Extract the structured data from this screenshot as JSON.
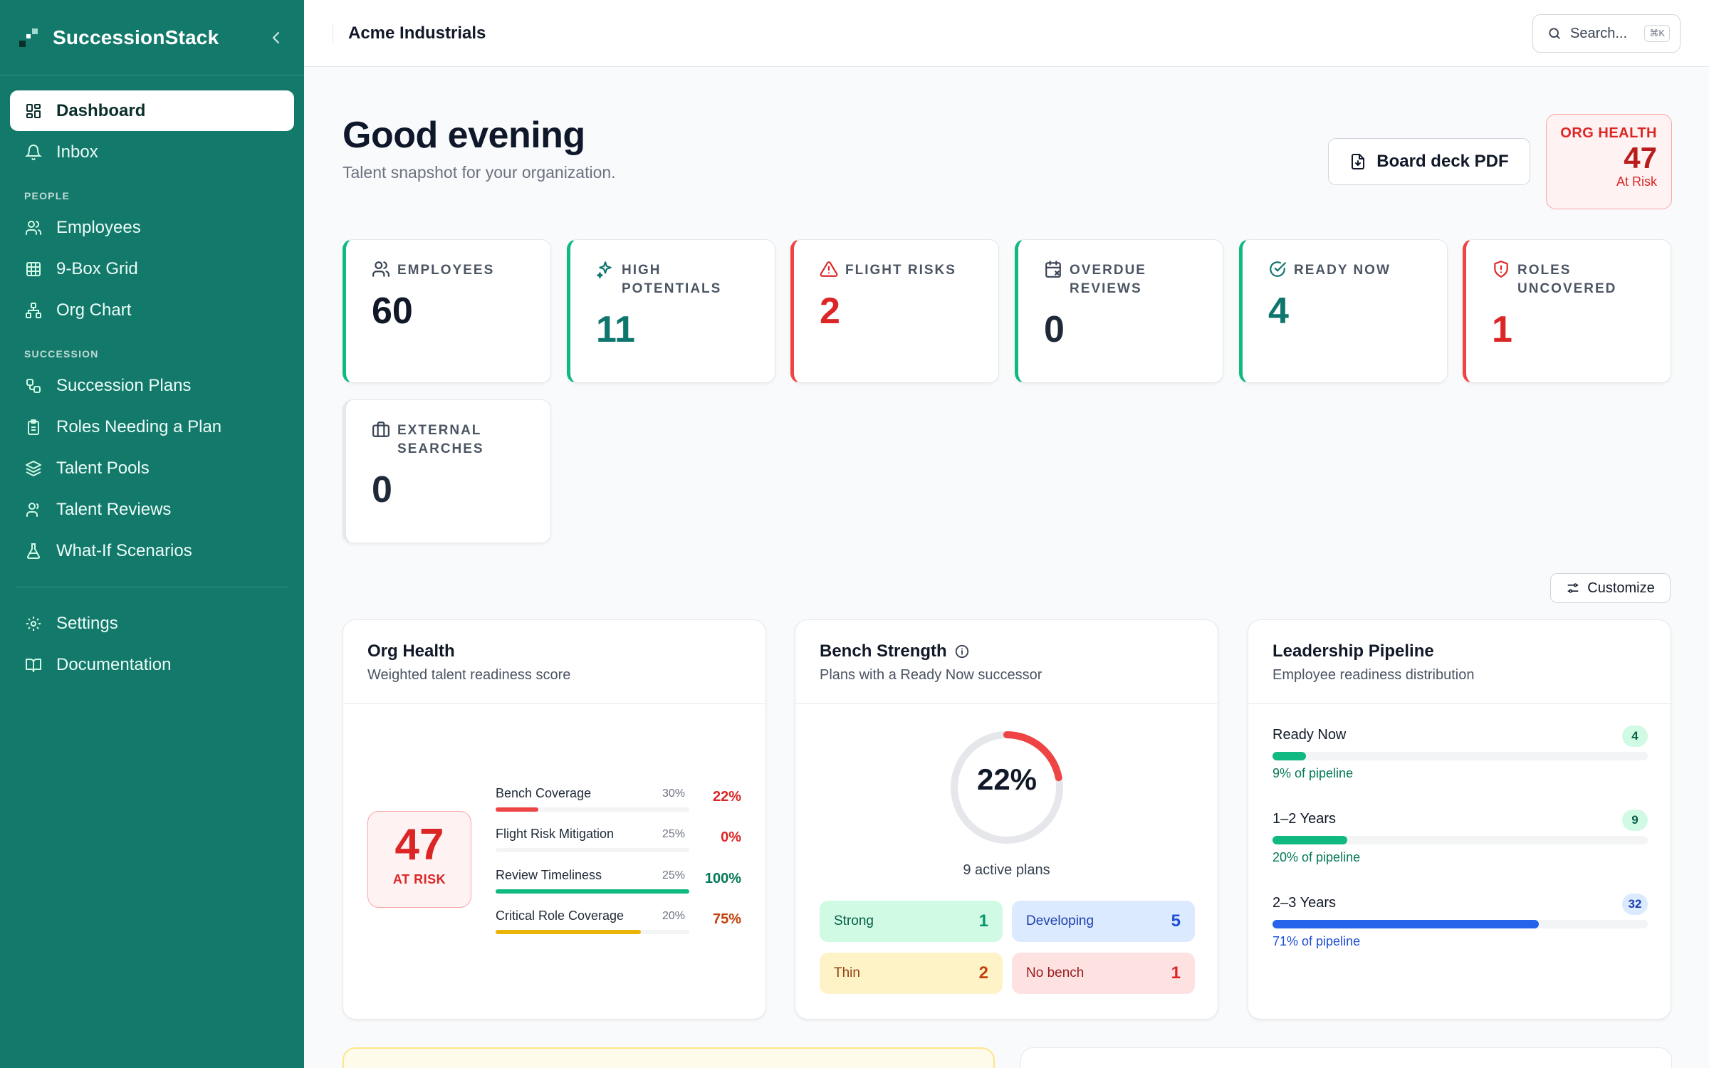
{
  "app": {
    "name": "SuccessionStack"
  },
  "sidebar": {
    "top_items": [
      {
        "label": "Dashboard",
        "icon": "dashboard-icon"
      },
      {
        "label": "Inbox",
        "icon": "bell-icon"
      }
    ],
    "sections": [
      {
        "title": "PEOPLE",
        "items": [
          {
            "label": "Employees",
            "icon": "users-icon"
          },
          {
            "label": "9-Box Grid",
            "icon": "grid-icon"
          },
          {
            "label": "Org Chart",
            "icon": "org-chart-icon"
          }
        ]
      },
      {
        "title": "SUCCESSION",
        "items": [
          {
            "label": "Succession Plans",
            "icon": "workflow-icon"
          },
          {
            "label": "Roles Needing a Plan",
            "icon": "clipboard-icon"
          },
          {
            "label": "Talent Pools",
            "icon": "layers-icon"
          },
          {
            "label": "Talent Reviews",
            "icon": "user-review-icon"
          },
          {
            "label": "What-If Scenarios",
            "icon": "flask-icon"
          }
        ]
      }
    ],
    "bottom_items": [
      {
        "label": "Settings",
        "icon": "gear-icon"
      },
      {
        "label": "Documentation",
        "icon": "book-icon"
      }
    ]
  },
  "topbar": {
    "org_name": "Acme Industrials",
    "search_label": "Search...",
    "search_shortcut": "⌘K"
  },
  "header": {
    "greeting": "Good evening",
    "subtitle": "Talent snapshot for your organization.",
    "deck_button": "Board deck PDF",
    "org_health": {
      "title": "ORG HEALTH",
      "value": "47",
      "status": "At Risk"
    }
  },
  "kpis": [
    {
      "label": "EMPLOYEES",
      "value": "60"
    },
    {
      "label": "HIGH POTENTIALS",
      "value": "11"
    },
    {
      "label": "FLIGHT RISKS",
      "value": "2"
    },
    {
      "label": "OVERDUE REVIEWS",
      "value": "0"
    },
    {
      "label": "READY NOW",
      "value": "4"
    },
    {
      "label": "ROLES UNCOVERED",
      "value": "1"
    },
    {
      "label": "EXTERNAL SEARCHES",
      "value": "0"
    }
  ],
  "customize_label": "Customize",
  "org_health_card": {
    "title": "Org Health",
    "subtitle": "Weighted talent readiness score",
    "score": "47",
    "status": "AT RISK",
    "metrics": [
      {
        "name": "Bench Coverage",
        "weight": "30%",
        "value": "22%",
        "fraction": 0.22,
        "color": "#ef4444",
        "text_color": "#dc2626"
      },
      {
        "name": "Flight Risk Mitigation",
        "weight": "25%",
        "value": "0%",
        "fraction": 0.0,
        "color": "#ef4444",
        "text_color": "#dc2626"
      },
      {
        "name": "Review Timeliness",
        "weight": "25%",
        "value": "100%",
        "fraction": 1.0,
        "color": "#10b981",
        "text_color": "#047857"
      },
      {
        "name": "Critical Role Coverage",
        "weight": "20%",
        "value": "75%",
        "fraction": 0.75,
        "color": "#eab308",
        "text_color": "#c2410c"
      }
    ]
  },
  "bench_card": {
    "title": "Bench Strength",
    "subtitle": "Plans with a Ready Now successor",
    "percent_label": "22%",
    "fraction": 0.22,
    "active_plans": "9 active plans",
    "tiles": [
      {
        "label": "Strong",
        "count": "1",
        "bg": "#d1fae5",
        "fg": "#065f46",
        "count_fg": "#059669"
      },
      {
        "label": "Developing",
        "count": "5",
        "bg": "#dbeafe",
        "fg": "#1e40af",
        "count_fg": "#1d4ed8"
      },
      {
        "label": "Thin",
        "count": "2",
        "bg": "#fef3c7",
        "fg": "#92400e",
        "count_fg": "#c2410c"
      },
      {
        "label": "No bench",
        "count": "1",
        "bg": "#fee2e2",
        "fg": "#991b1b",
        "count_fg": "#dc2626"
      }
    ]
  },
  "pipeline_card": {
    "title": "Leadership Pipeline",
    "subtitle": "Employee readiness distribution",
    "rows": [
      {
        "name": "Ready Now",
        "count": "4",
        "caption": "9% of pipeline",
        "fraction": 0.09,
        "color": "#10b981",
        "caption_color": "#047857",
        "badge_bg": "#d1fae5",
        "badge_fg": "#065f46"
      },
      {
        "name": "1–2 Years",
        "count": "9",
        "caption": "20% of pipeline",
        "fraction": 0.2,
        "color": "#10b981",
        "caption_color": "#047857",
        "badge_bg": "#d1fae5",
        "badge_fg": "#065f46"
      },
      {
        "name": "2–3 Years",
        "count": "32",
        "caption": "71% of pipeline",
        "fraction": 0.71,
        "color": "#2563eb",
        "caption_color": "#1d4ed8",
        "badge_bg": "#dbeafe",
        "badge_fg": "#1e40af"
      }
    ]
  }
}
